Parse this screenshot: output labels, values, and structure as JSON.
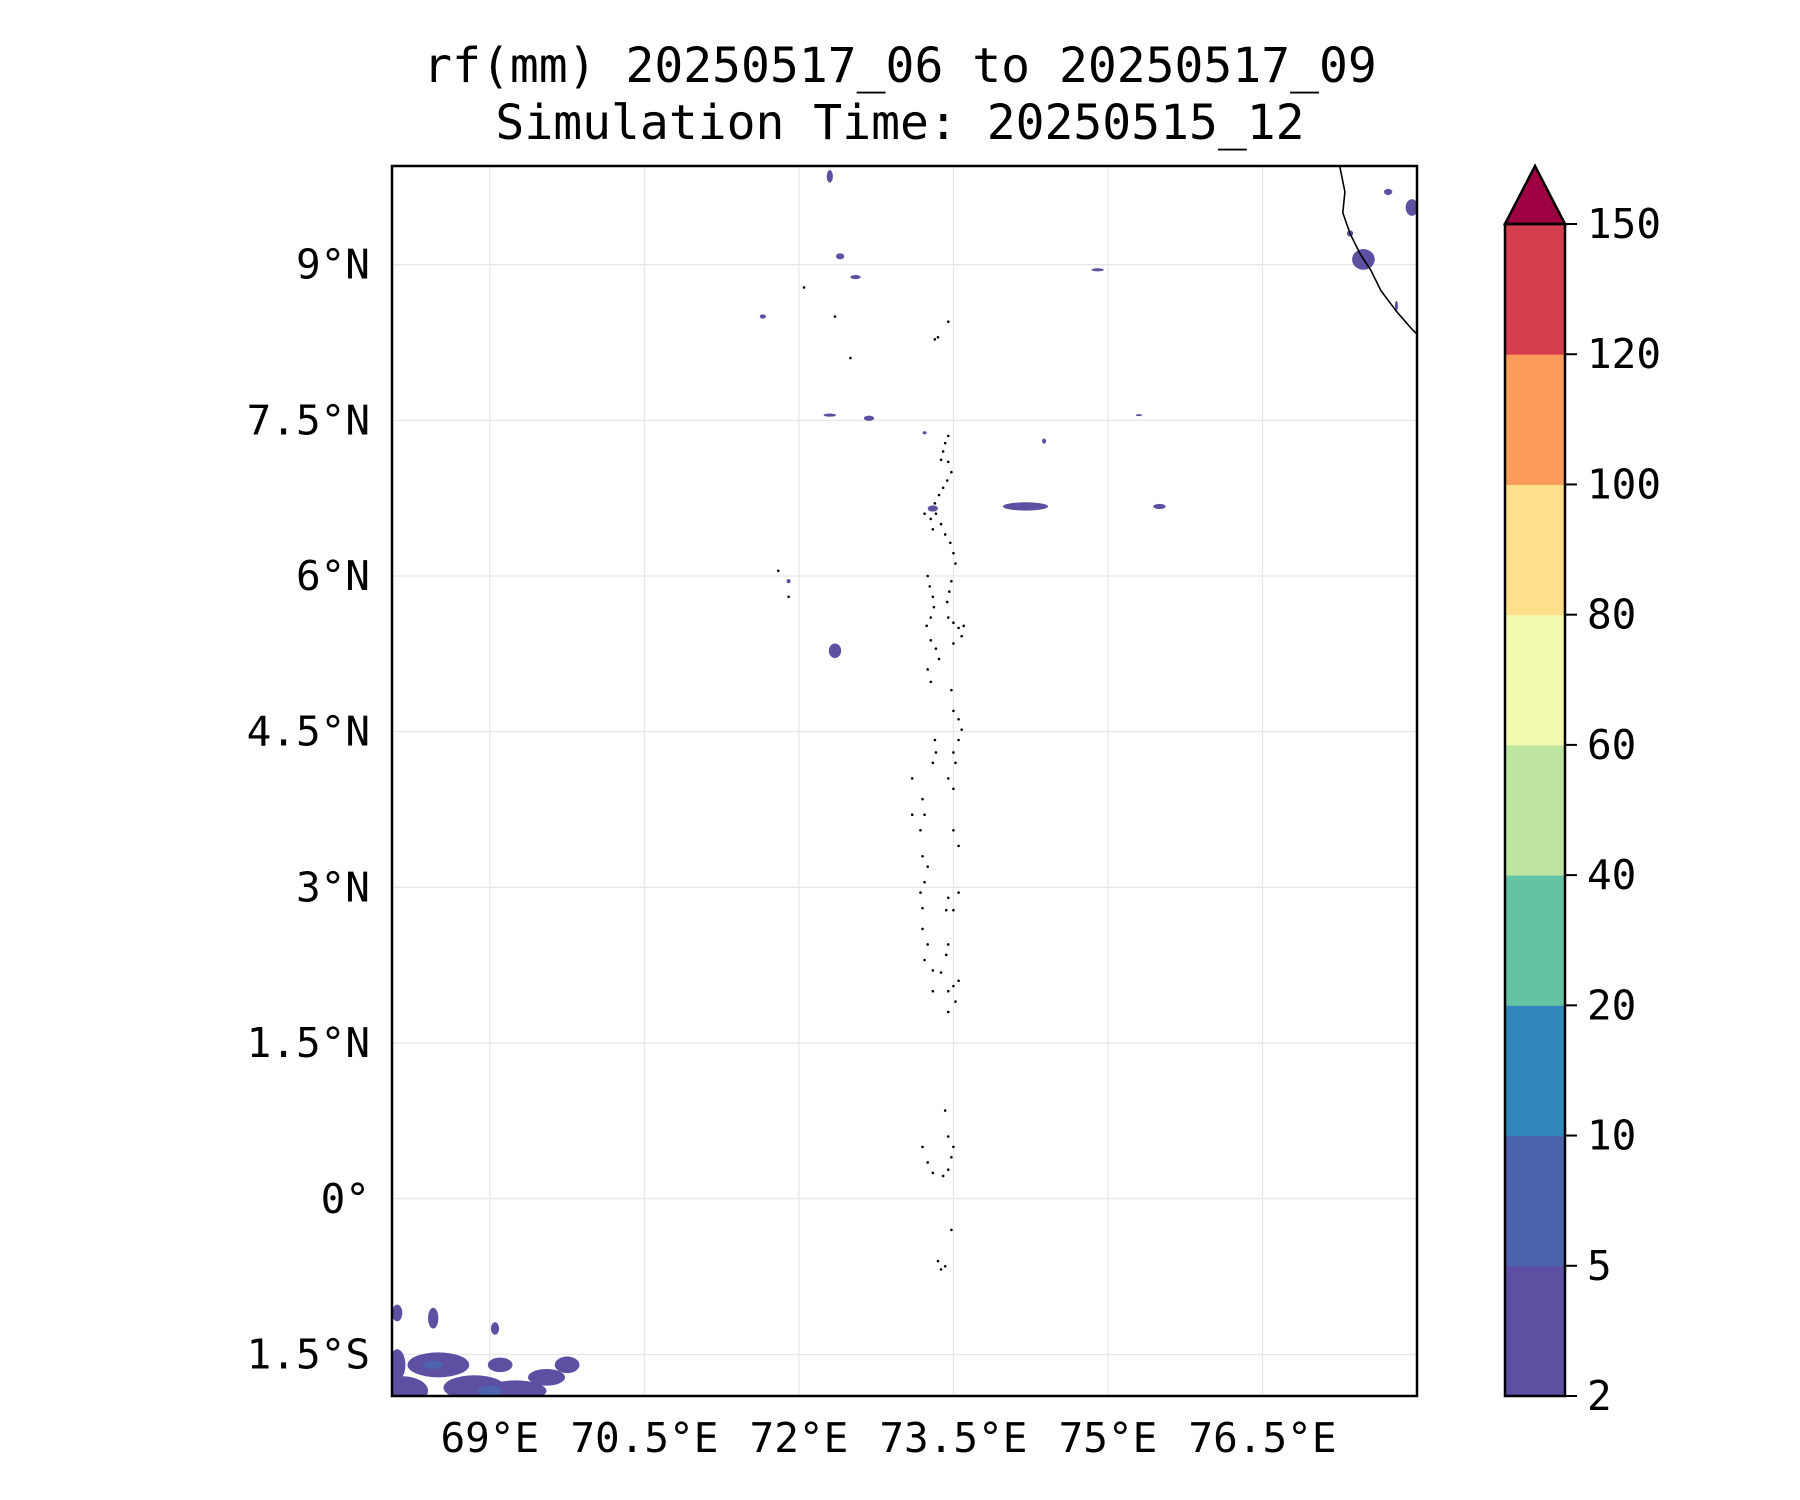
{
  "title_line1": "rf(mm) 20250517_06 to 20250517_09",
  "title_line2": "Simulation Time: 20250515_12",
  "map": {
    "extent": {
      "lon_min": 68.05,
      "lon_max": 78.0,
      "lat_min": -1.9,
      "lat_max": 9.95
    },
    "lat_ticks": [
      {
        "value": 9.0,
        "label": "9°N"
      },
      {
        "value": 7.5,
        "label": "7.5°N"
      },
      {
        "value": 6.0,
        "label": "6°N"
      },
      {
        "value": 4.5,
        "label": "4.5°N"
      },
      {
        "value": 3.0,
        "label": "3°N"
      },
      {
        "value": 1.5,
        "label": "1.5°N"
      },
      {
        "value": 0.0,
        "label": "0°"
      },
      {
        "value": -1.5,
        "label": "1.5°S"
      }
    ],
    "lon_ticks": [
      {
        "value": 69.0,
        "label": "69°E"
      },
      {
        "value": 70.5,
        "label": "70.5°E"
      },
      {
        "value": 72.0,
        "label": "72°E"
      },
      {
        "value": 73.5,
        "label": "73.5°E"
      },
      {
        "value": 75.0,
        "label": "75°E"
      },
      {
        "value": 76.5,
        "label": "76.5°E"
      }
    ],
    "gridlines": true,
    "coastline_india": [
      [
        77.25,
        9.95
      ],
      [
        77.3,
        9.7
      ],
      [
        77.28,
        9.5
      ],
      [
        77.35,
        9.3
      ],
      [
        77.45,
        9.1
      ],
      [
        77.55,
        8.95
      ],
      [
        77.65,
        8.75
      ],
      [
        77.8,
        8.55
      ],
      [
        77.95,
        8.38
      ],
      [
        78.05,
        8.28
      ],
      [
        78.2,
        8.22
      ],
      [
        78.4,
        8.22
      ],
      [
        78.6,
        8.3
      ],
      [
        78.85,
        8.35
      ],
      [
        79.0,
        8.45
      ]
    ],
    "islands": [
      [
        73.45,
        7.35
      ],
      [
        73.42,
        7.28
      ],
      [
        73.4,
        7.2
      ],
      [
        73.38,
        7.12
      ],
      [
        73.45,
        7.1
      ],
      [
        73.48,
        7.0
      ],
      [
        73.44,
        6.92
      ],
      [
        73.4,
        6.85
      ],
      [
        73.36,
        6.78
      ],
      [
        73.32,
        6.7
      ],
      [
        73.33,
        6.6
      ],
      [
        73.38,
        6.5
      ],
      [
        73.42,
        6.4
      ],
      [
        73.47,
        6.32
      ],
      [
        73.5,
        6.22
      ],
      [
        73.52,
        6.12
      ],
      [
        73.3,
        6.45
      ],
      [
        73.28,
        6.55
      ],
      [
        73.22,
        6.6
      ],
      [
        73.25,
        6.0
      ],
      [
        73.27,
        5.9
      ],
      [
        73.3,
        5.8
      ],
      [
        73.31,
        5.7
      ],
      [
        73.28,
        5.6
      ],
      [
        73.24,
        5.52
      ],
      [
        73.28,
        5.38
      ],
      [
        73.33,
        5.3
      ],
      [
        73.36,
        5.2
      ],
      [
        73.25,
        5.1
      ],
      [
        73.28,
        4.98
      ],
      [
        73.48,
        5.95
      ],
      [
        73.46,
        5.85
      ],
      [
        73.44,
        5.75
      ],
      [
        73.45,
        5.6
      ],
      [
        73.5,
        5.55
      ],
      [
        73.55,
        5.5
      ],
      [
        73.6,
        5.52
      ],
      [
        73.58,
        5.42
      ],
      [
        73.5,
        5.35
      ],
      [
        73.48,
        4.9
      ],
      [
        73.5,
        4.7
      ],
      [
        73.55,
        4.62
      ],
      [
        73.58,
        4.52
      ],
      [
        73.55,
        4.42
      ],
      [
        73.5,
        4.3
      ],
      [
        73.52,
        4.2
      ],
      [
        73.45,
        4.05
      ],
      [
        73.5,
        3.95
      ],
      [
        73.32,
        4.42
      ],
      [
        73.33,
        4.3
      ],
      [
        73.3,
        4.2
      ],
      [
        73.1,
        4.05
      ],
      [
        73.1,
        3.7
      ],
      [
        73.2,
        3.85
      ],
      [
        73.22,
        3.7
      ],
      [
        73.18,
        3.55
      ],
      [
        73.5,
        3.55
      ],
      [
        73.55,
        3.4
      ],
      [
        73.2,
        3.3
      ],
      [
        73.25,
        3.2
      ],
      [
        73.22,
        3.05
      ],
      [
        73.18,
        2.95
      ],
      [
        73.2,
        2.8
      ],
      [
        73.45,
        2.9
      ],
      [
        73.43,
        2.78
      ],
      [
        73.55,
        2.95
      ],
      [
        73.5,
        2.78
      ],
      [
        73.2,
        2.6
      ],
      [
        73.25,
        2.45
      ],
      [
        73.22,
        2.3
      ],
      [
        73.3,
        2.2
      ],
      [
        73.38,
        2.18
      ],
      [
        73.45,
        2.45
      ],
      [
        73.43,
        2.35
      ],
      [
        73.3,
        2.0
      ],
      [
        73.45,
        2.0
      ],
      [
        73.5,
        2.05
      ],
      [
        73.55,
        2.1
      ],
      [
        73.52,
        1.9
      ],
      [
        73.45,
        1.8
      ],
      [
        73.42,
        0.85
      ],
      [
        73.45,
        0.6
      ],
      [
        73.5,
        0.5
      ],
      [
        73.48,
        0.4
      ],
      [
        73.2,
        0.5
      ],
      [
        73.25,
        0.35
      ],
      [
        73.3,
        0.25
      ],
      [
        73.4,
        0.22
      ],
      [
        73.45,
        0.28
      ],
      [
        73.48,
        -0.3
      ],
      [
        73.35,
        -0.6
      ],
      [
        73.38,
        -0.68
      ],
      [
        73.42,
        -0.65
      ],
      [
        73.35,
        8.3
      ],
      [
        73.32,
        8.28
      ],
      [
        73.45,
        8.45
      ],
      [
        72.5,
        8.1
      ],
      [
        72.35,
        8.5
      ],
      [
        72.05,
        8.78
      ],
      [
        71.8,
        6.05
      ],
      [
        71.9,
        5.8
      ]
    ],
    "rain_blobs": [
      {
        "lon": 72.3,
        "lat": 9.85,
        "rx": 0.03,
        "ry": 0.06
      },
      {
        "lon": 72.4,
        "lat": 9.08,
        "rx": 0.04,
        "ry": 0.03
      },
      {
        "lon": 72.55,
        "lat": 8.88,
        "rx": 0.05,
        "ry": 0.02
      },
      {
        "lon": 74.9,
        "lat": 8.95,
        "rx": 0.06,
        "ry": 0.015
      },
      {
        "lon": 71.65,
        "lat": 8.5,
        "rx": 0.03,
        "ry": 0.02
      },
      {
        "lon": 72.3,
        "lat": 7.55,
        "rx": 0.06,
        "ry": 0.015
      },
      {
        "lon": 72.68,
        "lat": 7.52,
        "rx": 0.05,
        "ry": 0.025
      },
      {
        "lon": 73.22,
        "lat": 7.38,
        "rx": 0.02,
        "ry": 0.015
      },
      {
        "lon": 73.3,
        "lat": 6.65,
        "rx": 0.05,
        "ry": 0.03
      },
      {
        "lon": 74.2,
        "lat": 6.67,
        "rx": 0.22,
        "ry": 0.04
      },
      {
        "lon": 75.5,
        "lat": 6.67,
        "rx": 0.06,
        "ry": 0.025
      },
      {
        "lon": 74.38,
        "lat": 7.3,
        "rx": 0.02,
        "ry": 0.025
      },
      {
        "lon": 75.3,
        "lat": 7.55,
        "rx": 0.03,
        "ry": 0.01
      },
      {
        "lon": 72.35,
        "lat": 5.28,
        "rx": 0.06,
        "ry": 0.07
      },
      {
        "lon": 71.9,
        "lat": 5.95,
        "rx": 0.02,
        "ry": 0.02
      },
      {
        "lon": 77.48,
        "lat": 9.05,
        "rx": 0.11,
        "ry": 0.1
      },
      {
        "lon": 77.95,
        "lat": 9.55,
        "rx": 0.06,
        "ry": 0.08
      },
      {
        "lon": 77.72,
        "lat": 9.7,
        "rx": 0.04,
        "ry": 0.03
      },
      {
        "lon": 77.8,
        "lat": 8.6,
        "rx": 0.015,
        "ry": 0.05
      },
      {
        "lon": 77.35,
        "lat": 9.3,
        "rx": 0.03,
        "ry": 0.03
      },
      {
        "lon": 68.15,
        "lat": -1.85,
        "rx": 0.25,
        "ry": 0.14
      },
      {
        "lon": 68.5,
        "lat": -1.6,
        "rx": 0.3,
        "ry": 0.12
      },
      {
        "lon": 68.85,
        "lat": -1.82,
        "rx": 0.3,
        "ry": 0.12
      },
      {
        "lon": 69.25,
        "lat": -1.85,
        "rx": 0.3,
        "ry": 0.1
      },
      {
        "lon": 69.55,
        "lat": -1.72,
        "rx": 0.18,
        "ry": 0.08
      },
      {
        "lon": 69.75,
        "lat": -1.6,
        "rx": 0.12,
        "ry": 0.08
      },
      {
        "lon": 69.1,
        "lat": -1.6,
        "rx": 0.12,
        "ry": 0.07
      },
      {
        "lon": 68.1,
        "lat": -1.6,
        "rx": 0.08,
        "ry": 0.15
      },
      {
        "lon": 68.45,
        "lat": -1.15,
        "rx": 0.05,
        "ry": 0.1
      },
      {
        "lon": 69.05,
        "lat": -1.25,
        "rx": 0.04,
        "ry": 0.06
      },
      {
        "lon": 68.1,
        "lat": -1.1,
        "rx": 0.05,
        "ry": 0.08
      }
    ],
    "rain_blobs_heavy": [
      {
        "lon": 68.45,
        "lat": -1.6,
        "rx": 0.1,
        "ry": 0.04
      },
      {
        "lon": 69.0,
        "lat": -1.85,
        "rx": 0.12,
        "ry": 0.05
      }
    ]
  },
  "colorbar": {
    "levels": [
      "2",
      "5",
      "10",
      "20",
      "40",
      "60",
      "80",
      "100",
      "120",
      "150"
    ],
    "colors": [
      "#5e4fa2",
      "#4d64ad",
      "#3288bd",
      "#66c2a5",
      "#bde5a0",
      "#f3f9af",
      "#fee08b",
      "#fb9c58",
      "#d53e4f"
    ],
    "extend_color": "#9e0142"
  }
}
